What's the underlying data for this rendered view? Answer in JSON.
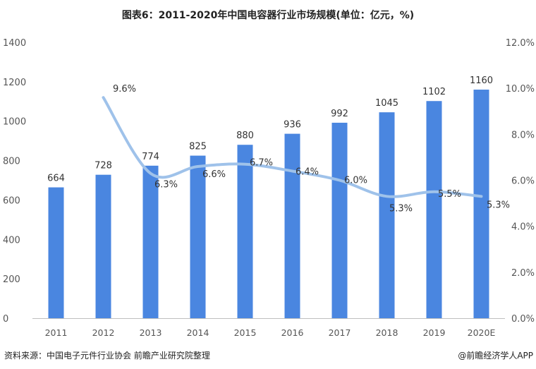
{
  "chart_data": {
    "type": "bar",
    "title": "图表6：2011-2020年中国电容器行业市场规模(单位：亿元，%)",
    "categories": [
      "2011",
      "2012",
      "2013",
      "2014",
      "2015",
      "2016",
      "2017",
      "2018",
      "2019",
      "2020E"
    ],
    "series": [
      {
        "type": "bar",
        "axis": "left",
        "values": [
          664,
          728,
          774,
          825,
          880,
          936,
          992,
          1045,
          1102,
          1160
        ],
        "labels": [
          "664",
          "728",
          "774",
          "825",
          "880",
          "936",
          "992",
          "1045",
          "1102",
          "1160"
        ],
        "color": "#4a86e0"
      },
      {
        "type": "line",
        "axis": "right",
        "values": [
          null,
          9.6,
          6.3,
          6.6,
          6.7,
          6.4,
          6.0,
          5.3,
          5.5,
          5.3
        ],
        "labels": [
          "",
          "9.6%",
          "6.3%",
          "6.6%",
          "6.7%",
          "6.4%",
          "6.0%",
          "5.3%",
          "5.5%",
          "5.3%"
        ],
        "color": "#9fc2ea"
      }
    ],
    "y_left": {
      "range": [
        0,
        1400
      ],
      "ticks": [
        "0",
        "200",
        "400",
        "600",
        "800",
        "1000",
        "1200",
        "1400"
      ]
    },
    "y_right": {
      "range": [
        0,
        12
      ],
      "ticks": [
        "0.0%",
        "2.0%",
        "4.0%",
        "6.0%",
        "8.0%",
        "10.0%",
        "12.0%"
      ]
    },
    "grid": false,
    "legend": "none"
  },
  "footer": {
    "source": "资料来源：中国电子元件行业协会 前瞻产业研究院整理",
    "brand": "@前瞻经济学人APP"
  }
}
